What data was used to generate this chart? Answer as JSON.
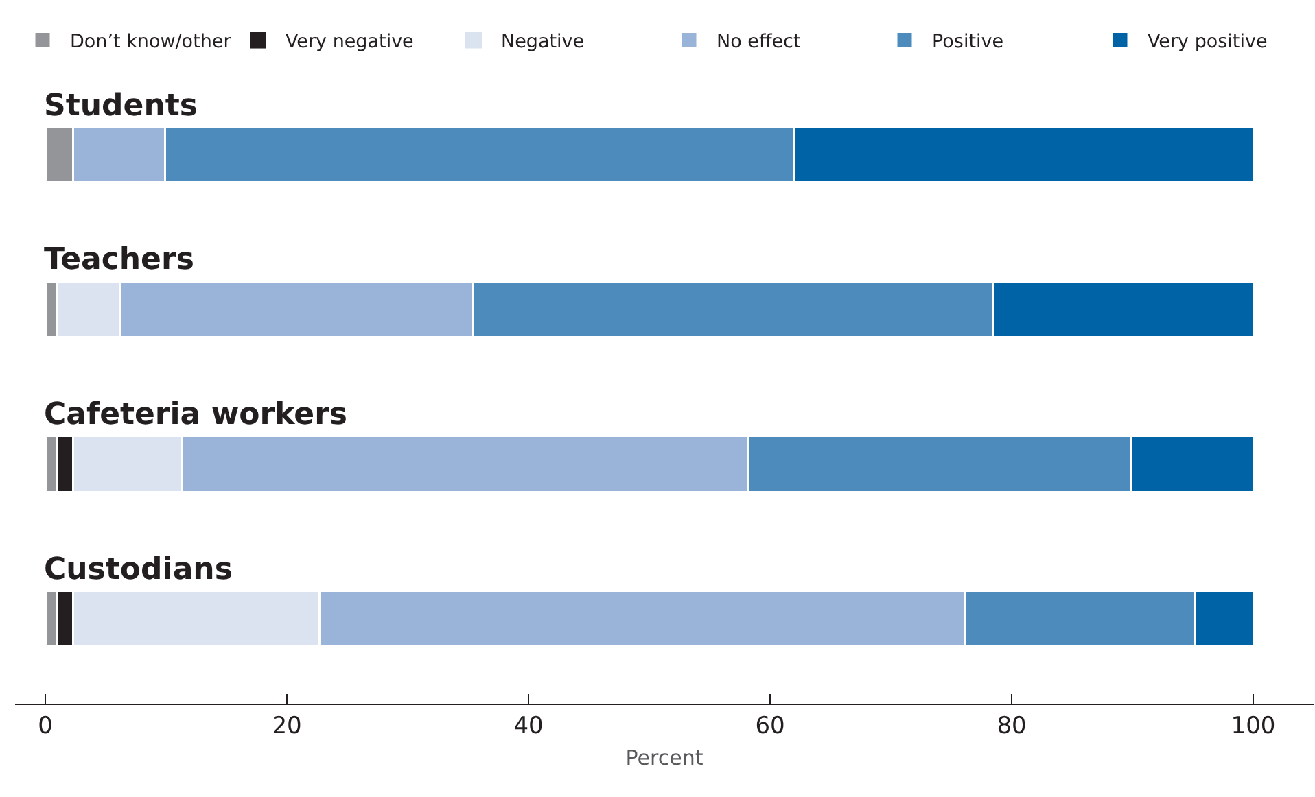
{
  "chart_data": {
    "type": "bar",
    "orientation": "horizontal",
    "stacked": true,
    "categories": [
      "Students",
      "Teachers",
      "Cafeteria workers",
      "Custodians"
    ],
    "series": [
      {
        "name": "Don’t know/other",
        "color": "#939598",
        "values": [
          2.3,
          1.0,
          1.0,
          1.0
        ]
      },
      {
        "name": "Very negative",
        "color": "#231f20",
        "values": [
          0,
          0,
          1.3,
          1.3
        ]
      },
      {
        "name": "Negative",
        "color": "#dce3f0",
        "values": [
          0,
          5.2,
          9.0,
          20.4
        ]
      },
      {
        "name": "No effect",
        "color": "#99b4d8",
        "values": [
          7.6,
          29.2,
          46.9,
          53.4
        ]
      },
      {
        "name": "Positive",
        "color": "#4d8bbd",
        "values": [
          52.1,
          43.1,
          31.7,
          19.1
        ]
      },
      {
        "name": "Very positive",
        "color": "#0063a6",
        "values": [
          38.0,
          21.5,
          10.1,
          4.8
        ]
      }
    ],
    "xlabel": "Percent",
    "xlim": [
      -2.5,
      105
    ],
    "xticks": [
      0,
      20,
      40,
      60,
      80,
      100
    ],
    "legend": "top"
  }
}
